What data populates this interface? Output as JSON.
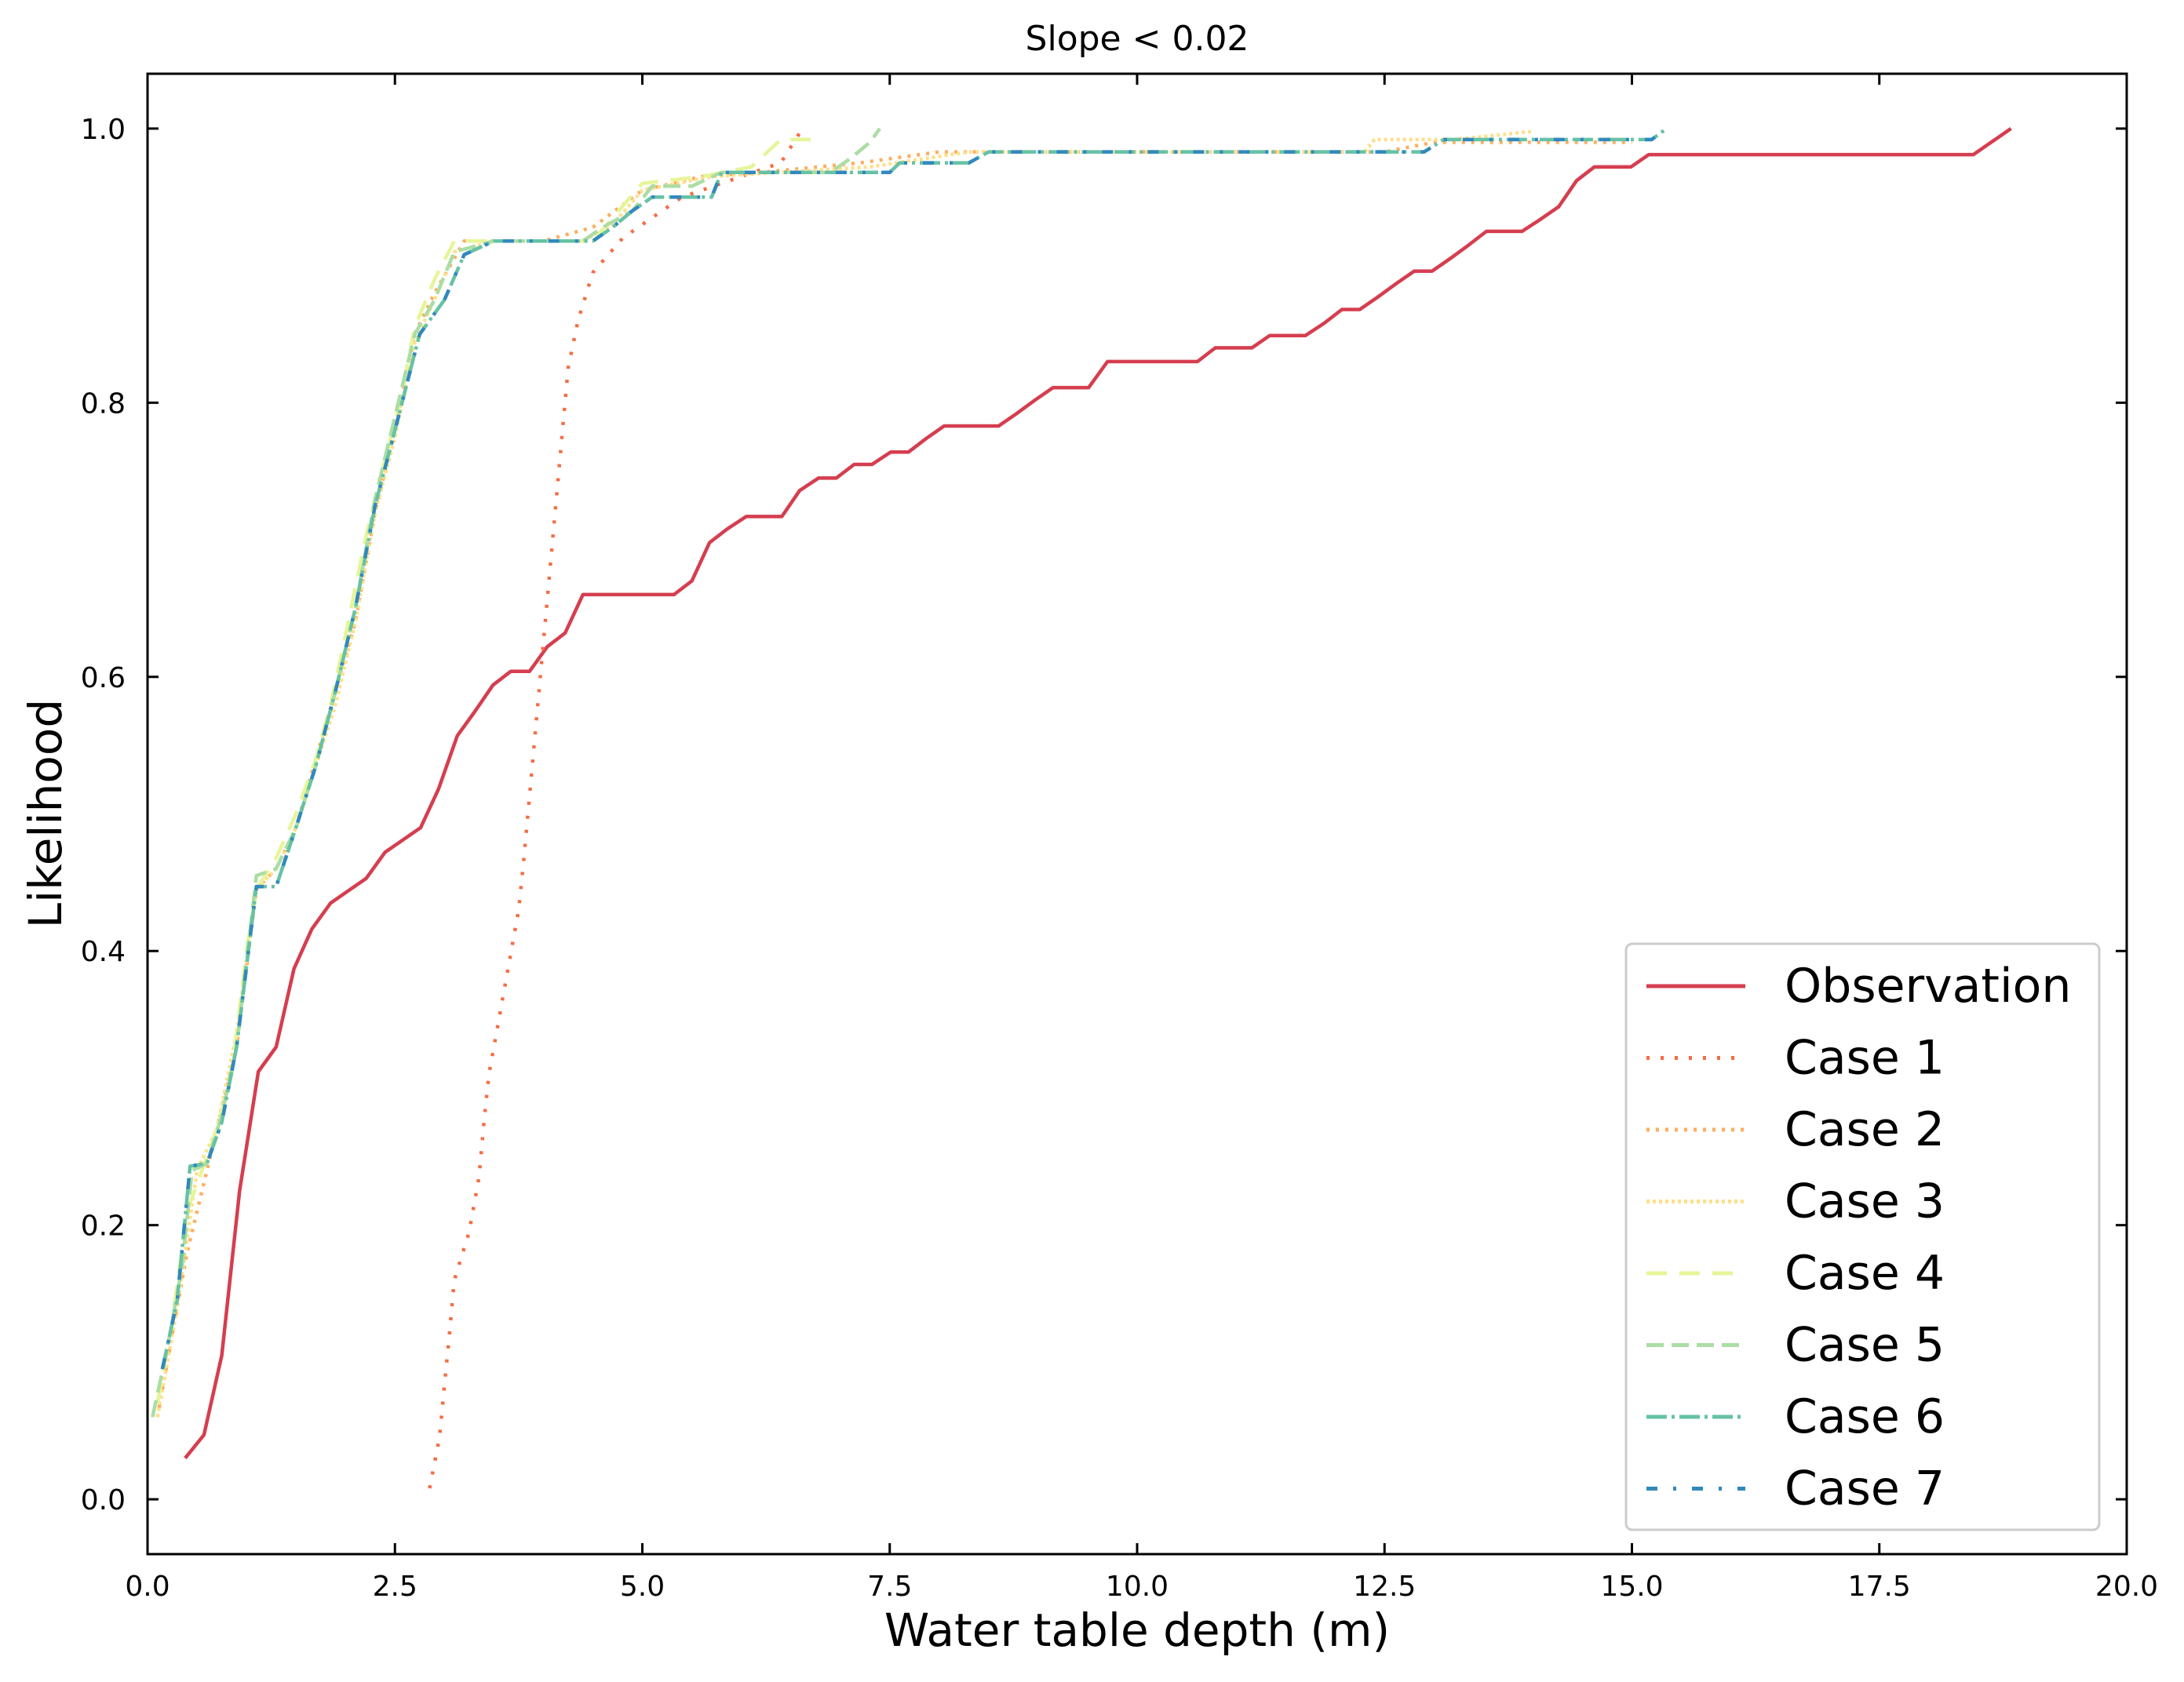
{
  "chart_data": {
    "type": "line",
    "title": "Slope < 0.02",
    "xlabel": "Water table depth (m)",
    "ylabel": "Likelihood",
    "xlim": [
      0,
      20
    ],
    "ylim": [
      -0.04,
      1.04
    ],
    "xticks": [
      0,
      2.5,
      5,
      7.5,
      10,
      12.5,
      15,
      17.5,
      20
    ],
    "xtick_labels": [
      "0.0",
      "2.5",
      "5.0",
      "7.5",
      "10.0",
      "12.5",
      "15.0",
      "17.5",
      "20.0"
    ],
    "yticks": [
      0,
      0.2,
      0.4,
      0.6,
      0.8,
      1.0
    ],
    "ytick_labels": [
      "0.0",
      "0.2",
      "0.4",
      "0.6",
      "0.8",
      "1.0"
    ],
    "grid": false,
    "legend_position": "bottom-right",
    "series": [
      {
        "name": "Observation",
        "color": "#d53e4f",
        "style": "solid",
        "points": [
          [
            0.38,
            0.03
          ],
          [
            0.57,
            0.047
          ],
          [
            0.75,
            0.105
          ],
          [
            0.93,
            0.225
          ],
          [
            1.12,
            0.312
          ],
          [
            1.3,
            0.33
          ],
          [
            1.48,
            0.387
          ],
          [
            1.66,
            0.416
          ],
          [
            1.85,
            0.435
          ],
          [
            2.03,
            0.444
          ],
          [
            2.21,
            0.453
          ],
          [
            2.4,
            0.472
          ],
          [
            2.58,
            0.481
          ],
          [
            2.76,
            0.49
          ],
          [
            2.94,
            0.518
          ],
          [
            3.13,
            0.557
          ],
          [
            3.31,
            0.575
          ],
          [
            3.49,
            0.594
          ],
          [
            3.67,
            0.604
          ],
          [
            3.86,
            0.604
          ],
          [
            4.04,
            0.622
          ],
          [
            4.22,
            0.632
          ],
          [
            4.4,
            0.66
          ],
          [
            4.59,
            0.66
          ],
          [
            4.77,
            0.66
          ],
          [
            4.95,
            0.66
          ],
          [
            5.13,
            0.66
          ],
          [
            5.32,
            0.66
          ],
          [
            5.5,
            0.67
          ],
          [
            5.68,
            0.698
          ],
          [
            5.86,
            0.708
          ],
          [
            6.05,
            0.717
          ],
          [
            6.23,
            0.717
          ],
          [
            6.41,
            0.717
          ],
          [
            6.59,
            0.736
          ],
          [
            6.78,
            0.745
          ],
          [
            6.96,
            0.745
          ],
          [
            7.14,
            0.755
          ],
          [
            7.32,
            0.755
          ],
          [
            7.51,
            0.764
          ],
          [
            7.69,
            0.764
          ],
          [
            7.87,
            0.774
          ],
          [
            8.05,
            0.783
          ],
          [
            8.24,
            0.783
          ],
          [
            8.42,
            0.783
          ],
          [
            8.6,
            0.783
          ],
          [
            8.78,
            0.792
          ],
          [
            8.97,
            0.802
          ],
          [
            9.15,
            0.811
          ],
          [
            9.33,
            0.811
          ],
          [
            9.51,
            0.811
          ],
          [
            9.7,
            0.83
          ],
          [
            9.88,
            0.83
          ],
          [
            10.06,
            0.83
          ],
          [
            10.24,
            0.83
          ],
          [
            10.43,
            0.83
          ],
          [
            10.61,
            0.83
          ],
          [
            10.79,
            0.84
          ],
          [
            10.97,
            0.84
          ],
          [
            11.16,
            0.84
          ],
          [
            11.34,
            0.849
          ],
          [
            11.52,
            0.849
          ],
          [
            11.7,
            0.849
          ],
          [
            11.89,
            0.858
          ],
          [
            12.07,
            0.868
          ],
          [
            12.25,
            0.868
          ],
          [
            12.43,
            0.877
          ],
          [
            12.62,
            0.887
          ],
          [
            12.8,
            0.896
          ],
          [
            12.98,
            0.896
          ],
          [
            13.16,
            0.905
          ],
          [
            13.35,
            0.915
          ],
          [
            13.53,
            0.925
          ],
          [
            13.71,
            0.925
          ],
          [
            13.89,
            0.925
          ],
          [
            14.08,
            0.934
          ],
          [
            14.26,
            0.943
          ],
          [
            14.44,
            0.962
          ],
          [
            14.62,
            0.972
          ],
          [
            14.81,
            0.972
          ],
          [
            14.99,
            0.972
          ],
          [
            15.17,
            0.981
          ],
          [
            18.45,
            0.981
          ],
          [
            18.83,
            1.0
          ]
        ]
      },
      {
        "name": "Case 1",
        "color": "#f46d43",
        "style": "dot-sparse",
        "points": [
          [
            2.85,
            0.008
          ],
          [
            2.95,
            0.045
          ],
          [
            3.0,
            0.083
          ],
          [
            3.05,
            0.12
          ],
          [
            3.1,
            0.16
          ],
          [
            3.25,
            0.195
          ],
          [
            3.35,
            0.235
          ],
          [
            3.4,
            0.275
          ],
          [
            3.45,
            0.31
          ],
          [
            3.55,
            0.35
          ],
          [
            3.65,
            0.39
          ],
          [
            3.75,
            0.43
          ],
          [
            3.8,
            0.465
          ],
          [
            3.85,
            0.505
          ],
          [
            3.9,
            0.545
          ],
          [
            3.95,
            0.585
          ],
          [
            4.0,
            0.625
          ],
          [
            4.05,
            0.665
          ],
          [
            4.1,
            0.705
          ],
          [
            4.15,
            0.745
          ],
          [
            4.2,
            0.785
          ],
          [
            4.25,
            0.825
          ],
          [
            4.35,
            0.86
          ],
          [
            4.5,
            0.895
          ],
          [
            4.8,
            0.92
          ],
          [
            5.0,
            0.93
          ],
          [
            5.4,
            0.95
          ],
          [
            6.0,
            0.965
          ],
          [
            6.4,
            0.975
          ],
          [
            6.6,
            0.998
          ]
        ]
      },
      {
        "name": "Case 2",
        "color": "#fdae61",
        "style": "dot-medium",
        "points": [
          [
            0.1,
            0.06
          ],
          [
            0.25,
            0.12
          ],
          [
            0.4,
            0.18
          ],
          [
            0.6,
            0.24
          ],
          [
            0.9,
            0.33
          ],
          [
            1.1,
            0.445
          ],
          [
            1.3,
            0.46
          ],
          [
            1.5,
            0.49
          ],
          [
            1.7,
            0.54
          ],
          [
            1.9,
            0.59
          ],
          [
            2.1,
            0.64
          ],
          [
            2.3,
            0.72
          ],
          [
            2.5,
            0.78
          ],
          [
            2.7,
            0.85
          ],
          [
            2.9,
            0.88
          ],
          [
            3.2,
            0.918
          ],
          [
            4.0,
            0.918
          ],
          [
            4.5,
            0.928
          ],
          [
            5.0,
            0.955
          ],
          [
            5.6,
            0.965
          ],
          [
            6.2,
            0.968
          ],
          [
            7.2,
            0.975
          ],
          [
            8.0,
            0.983
          ],
          [
            12.5,
            0.983
          ],
          [
            13.0,
            0.99
          ],
          [
            15.0,
            0.99
          ]
        ]
      },
      {
        "name": "Case 3",
        "color": "#fee08b",
        "style": "dot-dense",
        "points": [
          [
            0.1,
            0.06
          ],
          [
            0.3,
            0.14
          ],
          [
            0.5,
            0.24
          ],
          [
            0.7,
            0.27
          ],
          [
            0.9,
            0.34
          ],
          [
            1.1,
            0.445
          ],
          [
            1.3,
            0.46
          ],
          [
            1.5,
            0.49
          ],
          [
            1.7,
            0.535
          ],
          [
            1.9,
            0.58
          ],
          [
            2.1,
            0.64
          ],
          [
            2.3,
            0.72
          ],
          [
            2.5,
            0.775
          ],
          [
            2.7,
            0.845
          ],
          [
            2.9,
            0.875
          ],
          [
            3.1,
            0.91
          ],
          [
            3.5,
            0.918
          ],
          [
            4.4,
            0.918
          ],
          [
            4.7,
            0.93
          ],
          [
            5.0,
            0.955
          ],
          [
            5.7,
            0.965
          ],
          [
            7.3,
            0.972
          ],
          [
            8.3,
            0.983
          ],
          [
            12.3,
            0.983
          ],
          [
            12.4,
            0.992
          ],
          [
            13.2,
            0.992
          ],
          [
            14.0,
            0.998
          ]
        ]
      },
      {
        "name": "Case 4",
        "color": "#e6f598",
        "style": "dash-long",
        "points": [
          [
            0.1,
            0.07
          ],
          [
            0.25,
            0.13
          ],
          [
            0.4,
            0.21
          ],
          [
            0.55,
            0.24
          ],
          [
            0.7,
            0.27
          ],
          [
            0.85,
            0.31
          ],
          [
            1.0,
            0.4
          ],
          [
            1.1,
            0.445
          ],
          [
            1.3,
            0.468
          ],
          [
            1.5,
            0.5
          ],
          [
            1.7,
            0.54
          ],
          [
            1.85,
            0.58
          ],
          [
            2.0,
            0.63
          ],
          [
            2.2,
            0.7
          ],
          [
            2.35,
            0.745
          ],
          [
            2.55,
            0.8
          ],
          [
            2.7,
            0.855
          ],
          [
            2.9,
            0.89
          ],
          [
            3.1,
            0.918
          ],
          [
            4.5,
            0.918
          ],
          [
            4.7,
            0.935
          ],
          [
            5.0,
            0.96
          ],
          [
            5.6,
            0.965
          ],
          [
            6.1,
            0.972
          ],
          [
            6.4,
            0.992
          ],
          [
            6.7,
            0.992
          ]
        ]
      },
      {
        "name": "Case 5",
        "color": "#abdda4",
        "style": "dash-medium",
        "points": [
          [
            0.05,
            0.06
          ],
          [
            0.2,
            0.11
          ],
          [
            0.35,
            0.17
          ],
          [
            0.45,
            0.24
          ],
          [
            0.6,
            0.245
          ],
          [
            0.75,
            0.28
          ],
          [
            0.9,
            0.33
          ],
          [
            1.1,
            0.455
          ],
          [
            1.3,
            0.46
          ],
          [
            1.5,
            0.49
          ],
          [
            1.7,
            0.535
          ],
          [
            1.9,
            0.59
          ],
          [
            2.1,
            0.65
          ],
          [
            2.3,
            0.73
          ],
          [
            2.5,
            0.79
          ],
          [
            2.7,
            0.85
          ],
          [
            2.9,
            0.875
          ],
          [
            3.1,
            0.91
          ],
          [
            3.5,
            0.918
          ],
          [
            4.4,
            0.918
          ],
          [
            4.6,
            0.928
          ],
          [
            4.9,
            0.94
          ],
          [
            5.1,
            0.958
          ],
          [
            5.5,
            0.958
          ],
          [
            5.8,
            0.968
          ],
          [
            6.9,
            0.968
          ],
          [
            7.1,
            0.978
          ],
          [
            7.3,
            0.99
          ],
          [
            7.4,
            1.0
          ]
        ]
      },
      {
        "name": "Case 6",
        "color": "#66c2a5",
        "style": "dash-dot",
        "points": [
          [
            0.15,
            0.095
          ],
          [
            0.3,
            0.145
          ],
          [
            0.43,
            0.243
          ],
          [
            0.6,
            0.245
          ],
          [
            0.75,
            0.275
          ],
          [
            0.9,
            0.33
          ],
          [
            1.1,
            0.447
          ],
          [
            1.3,
            0.447
          ],
          [
            1.5,
            0.49
          ],
          [
            1.7,
            0.535
          ],
          [
            1.9,
            0.59
          ],
          [
            2.1,
            0.65
          ],
          [
            2.3,
            0.725
          ],
          [
            2.5,
            0.78
          ],
          [
            2.75,
            0.85
          ],
          [
            3.0,
            0.875
          ],
          [
            3.2,
            0.908
          ],
          [
            3.5,
            0.918
          ],
          [
            4.5,
            0.918
          ],
          [
            4.7,
            0.928
          ],
          [
            4.9,
            0.94
          ],
          [
            5.1,
            0.95
          ],
          [
            5.7,
            0.95
          ],
          [
            5.8,
            0.968
          ],
          [
            7.5,
            0.968
          ],
          [
            7.6,
            0.975
          ],
          [
            8.3,
            0.975
          ],
          [
            8.5,
            0.983
          ],
          [
            12.9,
            0.983
          ],
          [
            13.1,
            0.992
          ],
          [
            15.2,
            0.992
          ],
          [
            15.35,
            1.0
          ]
        ]
      },
      {
        "name": "Case 7",
        "color": "#3288bd",
        "style": "dash-dot-sparse",
        "points": [
          [
            0.15,
            0.095
          ],
          [
            0.3,
            0.145
          ],
          [
            0.43,
            0.243
          ],
          [
            0.6,
            0.245
          ],
          [
            0.75,
            0.275
          ],
          [
            0.9,
            0.33
          ],
          [
            1.1,
            0.447
          ],
          [
            1.3,
            0.447
          ],
          [
            1.5,
            0.49
          ],
          [
            1.7,
            0.535
          ],
          [
            1.9,
            0.59
          ],
          [
            2.1,
            0.65
          ],
          [
            2.3,
            0.725
          ],
          [
            2.5,
            0.78
          ],
          [
            2.75,
            0.85
          ],
          [
            3.0,
            0.875
          ],
          [
            3.2,
            0.908
          ],
          [
            3.5,
            0.918
          ],
          [
            4.5,
            0.918
          ],
          [
            4.7,
            0.928
          ],
          [
            4.9,
            0.94
          ],
          [
            5.1,
            0.95
          ],
          [
            5.7,
            0.95
          ],
          [
            5.8,
            0.968
          ],
          [
            7.5,
            0.968
          ],
          [
            7.6,
            0.975
          ],
          [
            8.3,
            0.975
          ],
          [
            8.5,
            0.983
          ],
          [
            12.9,
            0.983
          ],
          [
            13.1,
            0.992
          ],
          [
            15.2,
            0.992
          ],
          [
            15.35,
            1.0
          ]
        ]
      }
    ]
  }
}
